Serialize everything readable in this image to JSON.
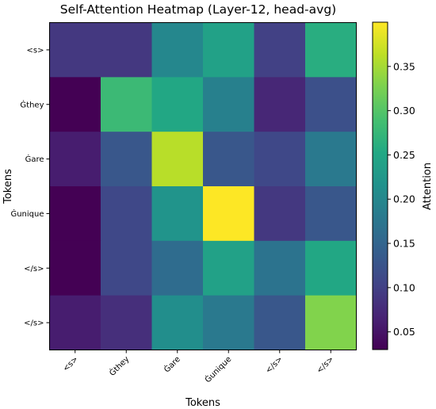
{
  "chart_data": {
    "type": "heatmap",
    "title": "Self-Attention Heatmap (Layer-12, head-avg)",
    "xlabel": "Tokens",
    "ylabel": "Tokens",
    "x_tokens": [
      "<s>",
      "Ġthey",
      "Ġare",
      "Ġunique",
      "</s>",
      "</s>"
    ],
    "y_tokens": [
      "<s>",
      "Ġthey",
      "Ġare",
      "Ġunique",
      "</s>",
      "</s>"
    ],
    "values": [
      [
        0.09,
        0.09,
        0.2,
        0.24,
        0.1,
        0.26
      ],
      [
        0.03,
        0.28,
        0.25,
        0.19,
        0.07,
        0.12
      ],
      [
        0.06,
        0.13,
        0.36,
        0.13,
        0.11,
        0.18
      ],
      [
        0.03,
        0.11,
        0.22,
        0.4,
        0.09,
        0.13
      ],
      [
        0.03,
        0.11,
        0.16,
        0.24,
        0.17,
        0.25
      ],
      [
        0.06,
        0.08,
        0.21,
        0.18,
        0.13,
        0.33
      ]
    ],
    "colorbar": {
      "label": "Attention",
      "vmin": 0.03,
      "vmax": 0.4,
      "ticks": [
        0.05,
        0.1,
        0.15,
        0.2,
        0.25,
        0.3,
        0.35
      ],
      "tick_labels": [
        "0.05",
        "0.10",
        "0.15",
        "0.20",
        "0.25",
        "0.30",
        "0.35"
      ],
      "colormap": "viridis"
    }
  }
}
